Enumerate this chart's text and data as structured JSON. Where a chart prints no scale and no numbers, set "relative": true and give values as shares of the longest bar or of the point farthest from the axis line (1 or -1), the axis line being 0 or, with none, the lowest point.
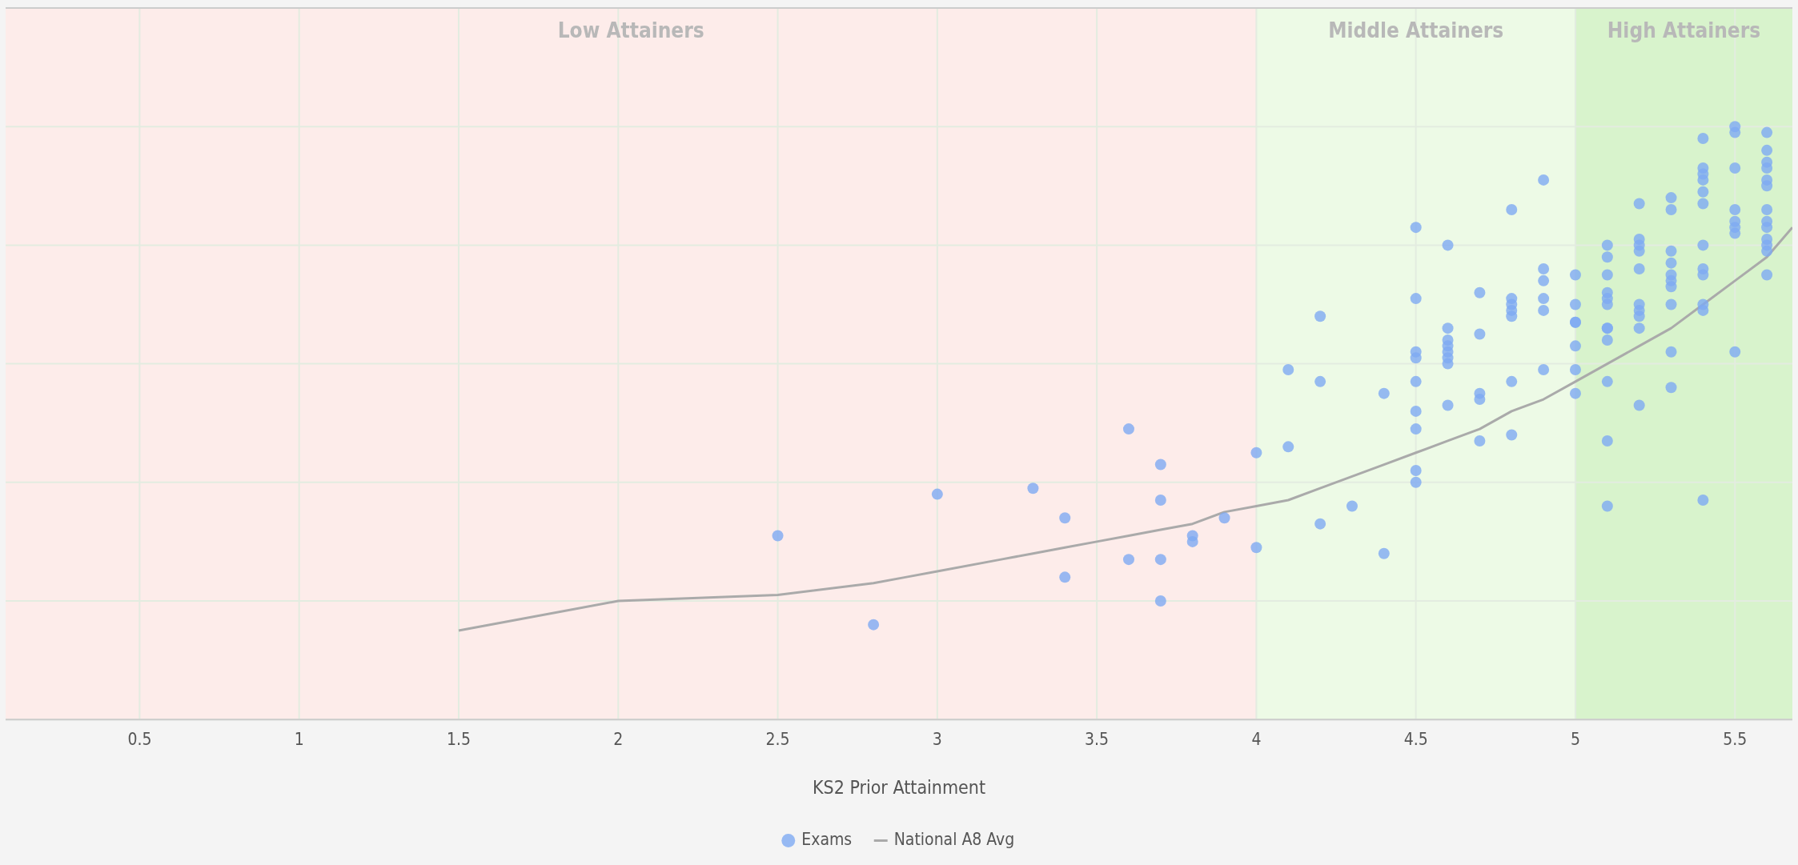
{
  "chart_data": {
    "type": "scatter",
    "xlabel": "KS2 Prior Attainment",
    "xlim": [
      0.08,
      5.68
    ],
    "xticks": [
      0.5,
      1,
      1.5,
      2,
      2.5,
      3,
      3.5,
      4,
      4.5,
      5,
      5.5
    ],
    "relative": true,
    "grid": true,
    "legend": "bottom",
    "bands": [
      {
        "axis": "x",
        "from": 0.08,
        "to": 4,
        "label": "Low Attainers",
        "color": "#fdecea"
      },
      {
        "axis": "x",
        "from": 4,
        "to": 5,
        "label": "Middle Attainers",
        "color": "#edfae6"
      },
      {
        "axis": "x",
        "from": 5,
        "to": 5.68,
        "label": "High Attainers",
        "color": "#d8f3cc"
      }
    ],
    "series": [
      {
        "name": "Exams",
        "marker": "circle",
        "color": "#7eaaf2",
        "x": [
          2.5,
          2.8,
          3.0,
          3.3,
          3.4,
          3.4,
          3.6,
          3.6,
          3.7,
          3.7,
          3.7,
          3.7,
          3.8,
          3.8,
          3.9,
          4.0,
          4.0,
          4.1,
          4.1,
          4.2,
          4.2,
          4.2,
          4.3,
          4.4,
          4.4,
          4.5,
          4.5,
          4.5,
          4.5,
          4.5,
          4.5,
          4.5,
          4.5,
          4.5,
          4.6,
          4.6,
          4.6,
          4.6,
          4.6,
          4.6,
          4.6,
          4.6,
          4.7,
          4.7,
          4.7,
          4.7,
          4.7,
          4.8,
          4.8,
          4.8,
          4.8,
          4.8,
          4.8,
          4.8,
          4.9,
          4.9,
          4.9,
          4.9,
          4.9,
          4.9,
          5.0,
          5.0,
          5.0,
          5.0,
          5.0,
          5.0,
          5.0,
          5.1,
          5.1,
          5.1,
          5.1,
          5.1,
          5.1,
          5.1,
          5.1,
          5.1,
          5.1,
          5.1,
          5.1,
          5.2,
          5.2,
          5.2,
          5.2,
          5.2,
          5.2,
          5.2,
          5.2,
          5.2,
          5.2,
          5.3,
          5.3,
          5.3,
          5.3,
          5.3,
          5.3,
          5.3,
          5.3,
          5.3,
          5.3,
          5.4,
          5.4,
          5.4,
          5.4,
          5.4,
          5.4,
          5.4,
          5.4,
          5.4,
          5.4,
          5.4,
          5.4,
          5.5,
          5.5,
          5.5,
          5.5,
          5.5,
          5.5,
          5.5,
          5.5,
          5.6,
          5.6,
          5.6,
          5.6,
          5.6,
          5.6,
          5.6,
          5.6,
          5.6,
          5.6,
          5.6,
          5.6,
          5.6
        ],
        "values": [
          0.31,
          0.16,
          0.38,
          0.39,
          0.34,
          0.24,
          0.49,
          0.27,
          0.43,
          0.37,
          0.27,
          0.2,
          0.31,
          0.3,
          0.34,
          0.45,
          0.29,
          0.59,
          0.46,
          0.68,
          0.57,
          0.33,
          0.36,
          0.55,
          0.28,
          0.83,
          0.71,
          0.62,
          0.61,
          0.57,
          0.52,
          0.49,
          0.42,
          0.4,
          0.8,
          0.66,
          0.64,
          0.63,
          0.62,
          0.61,
          0.6,
          0.53,
          0.72,
          0.65,
          0.55,
          0.54,
          0.47,
          0.86,
          0.71,
          0.7,
          0.69,
          0.68,
          0.57,
          0.48,
          0.91,
          0.76,
          0.74,
          0.71,
          0.69,
          0.59,
          0.75,
          0.7,
          0.67,
          0.67,
          0.63,
          0.59,
          0.55,
          0.8,
          0.78,
          0.75,
          0.72,
          0.71,
          0.7,
          0.66,
          0.66,
          0.64,
          0.57,
          0.47,
          0.36,
          0.87,
          0.81,
          0.8,
          0.79,
          0.76,
          0.7,
          0.69,
          0.68,
          0.66,
          0.53,
          0.88,
          0.86,
          0.79,
          0.77,
          0.75,
          0.74,
          0.73,
          0.7,
          0.62,
          0.56,
          0.98,
          0.93,
          0.92,
          0.91,
          0.89,
          0.87,
          0.8,
          0.76,
          0.75,
          0.7,
          0.69,
          0.37,
          1.0,
          0.99,
          0.93,
          0.86,
          0.84,
          0.83,
          0.82,
          0.62,
          0.99,
          0.96,
          0.94,
          0.93,
          0.91,
          0.9,
          0.86,
          0.84,
          0.83,
          0.81,
          0.8,
          0.79,
          0.75
        ]
      },
      {
        "name": "National A8 Avg",
        "type": "line",
        "marker": "none",
        "color": "#aaaaaa",
        "x": [
          1.5,
          2.0,
          2.5,
          2.8,
          2.9,
          3.0,
          3.2,
          3.3,
          3.4,
          3.5,
          3.6,
          3.7,
          3.8,
          3.9,
          4.0,
          4.1,
          4.2,
          4.3,
          4.4,
          4.5,
          4.6,
          4.7,
          4.8,
          4.9,
          5.0,
          5.1,
          5.2,
          5.3,
          5.4,
          5.5,
          5.6,
          5.68
        ],
        "values": [
          0.15,
          0.2,
          0.21,
          0.23,
          0.24,
          0.25,
          0.27,
          0.28,
          0.29,
          0.3,
          0.31,
          0.32,
          0.33,
          0.35,
          0.36,
          0.37,
          0.39,
          0.41,
          0.43,
          0.45,
          0.47,
          0.49,
          0.52,
          0.54,
          0.57,
          0.6,
          0.63,
          0.66,
          0.7,
          0.74,
          0.78,
          0.83
        ]
      }
    ]
  }
}
